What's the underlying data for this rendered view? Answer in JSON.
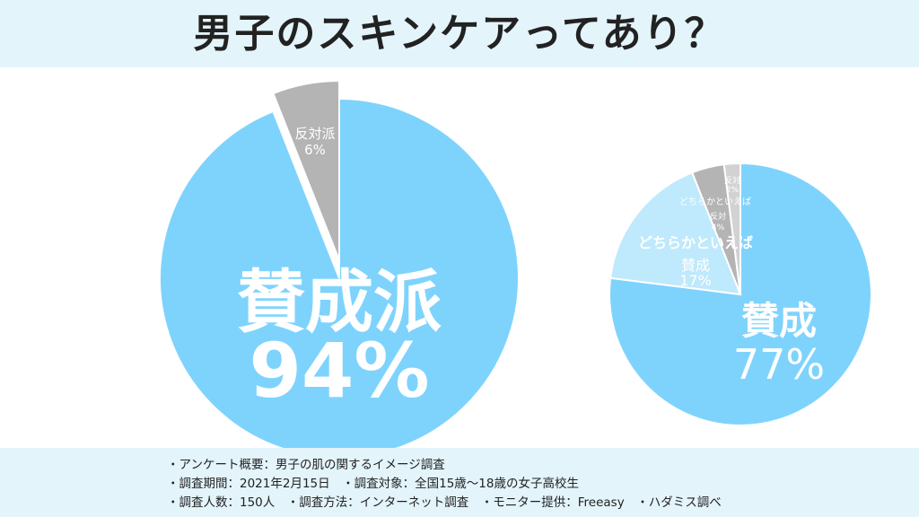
{
  "title": "男子のスキンケアってあり？",
  "colors": {
    "agree": "#7ed3fd",
    "neutral": "#bfe9fc",
    "against": "#b4b4b4",
    "header_bg": "#e3f4fb"
  },
  "chart_data": [
    {
      "type": "pie",
      "slices": [
        {
          "label": "賛成派",
          "value": 94,
          "value_label": "94%"
        },
        {
          "label": "反対派",
          "value": 6,
          "value_label": "6%"
        }
      ]
    },
    {
      "type": "pie",
      "slices": [
        {
          "label": "賛成",
          "value": 77,
          "value_label": "77%"
        },
        {
          "label_line1": "どちらかといえば",
          "label_line2": "賛成",
          "value": 17,
          "value_label": "17%"
        },
        {
          "label_line1": "どちらかといえば",
          "label_line2": "反対",
          "value": 4,
          "value_label": "4%"
        },
        {
          "label": "反対",
          "value": 2,
          "value_label": "2%"
        }
      ]
    }
  ],
  "footer": {
    "line1": "・アンケート概要：男子の肌の関するイメージ調査",
    "line2": "・調査期間：2021年2月15日　・調査対象：全国15歳〜18歳の女子高校生",
    "line3": "・調査人数：150人　・調査方法：インターネット調査　・モニター提供：Freeasy　・ハダミス調べ"
  }
}
